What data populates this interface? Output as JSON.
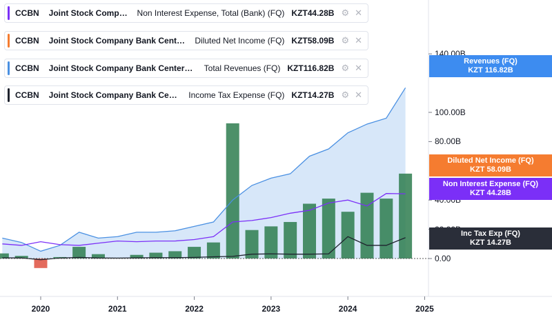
{
  "legend": [
    {
      "ticker": "CCBN",
      "company": "Joint Stock Company Bank CenterCredit",
      "metric": "Non Interest Expense, Total (Bank) (FQ)",
      "value": "KZT44.28B",
      "color": "#7b2ff7"
    },
    {
      "ticker": "CCBN",
      "company": "Joint Stock Company Bank CenterCredit",
      "metric": "Diluted Net Income (FQ)",
      "value": "KZT58.09B",
      "color": "#f57c30"
    },
    {
      "ticker": "CCBN",
      "company": "Joint Stock Company Bank CenterCredit",
      "metric": "Total Revenues (FQ)",
      "value": "KZT116.82B",
      "color": "#4a90e2"
    },
    {
      "ticker": "CCBN",
      "company": "Joint Stock Company Bank CenterCredit",
      "metric": "Income Tax Expense (FQ)",
      "value": "KZT14.27B",
      "color": "#1e222d"
    }
  ],
  "icons": {
    "settings": "gear-icon",
    "close": "close-icon"
  },
  "price_labels": [
    {
      "title": "Revenues (FQ)",
      "value": "KZT 116.82B",
      "color": "#3d8cf0"
    },
    {
      "title": "Diluted Net Income (FQ)",
      "value": "KZT 58.09B",
      "color": "#f57c30"
    },
    {
      "title": "Non Interest Expense (FQ)",
      "value": "KZT 44.28B",
      "color": "#7b2ff7"
    },
    {
      "title": "Inc Tax Exp (FQ)",
      "value": "KZT 14.27B",
      "color": "#2a2e39"
    }
  ],
  "chart_data": {
    "type": "bar",
    "title": "",
    "xlabel": "",
    "ylabel": "",
    "y_ticks": [
      "0.00",
      "20.00B",
      "40.00B",
      "80.00B",
      "100.00B",
      "140.00B"
    ],
    "y_tick_values": [
      0,
      20,
      40,
      80,
      100,
      140
    ],
    "x_ticks": [
      "2020",
      "2021",
      "2022",
      "2023",
      "2024",
      "2025"
    ],
    "x_tick_values": [
      2020,
      2021,
      2022,
      2023,
      2024,
      2025
    ],
    "ylim": [
      -8,
      158
    ],
    "xlim": [
      2019.47,
      2025.05
    ],
    "grid": false,
    "series": [
      {
        "name": "Diluted Net Income (FQ)",
        "type": "bar",
        "positive_color": "#2e7d4f",
        "negative_color": "#e05a4a",
        "x": [
          2019.5,
          2019.75,
          2020.0,
          2020.25,
          2020.5,
          2020.75,
          2021.0,
          2021.25,
          2021.5,
          2021.75,
          2022.0,
          2022.25,
          2022.5,
          2022.75,
          2023.0,
          2023.25,
          2023.5,
          2023.75,
          2024.0,
          2024.25,
          2024.5,
          2024.75
        ],
        "values": [
          3.5,
          1.8,
          -6.5,
          1.0,
          8.0,
          3.0,
          0.5,
          2.5,
          4.0,
          5.0,
          8.0,
          11.0,
          92.5,
          19.5,
          22.0,
          25.0,
          37.5,
          41.0,
          32.0,
          45.0,
          41.0,
          58.09
        ]
      },
      {
        "name": "Total Revenues (FQ)",
        "type": "area",
        "color": "#4a90e2",
        "x": [
          2019.5,
          2019.75,
          2020.0,
          2020.25,
          2020.5,
          2020.75,
          2021.0,
          2021.25,
          2021.5,
          2021.75,
          2022.0,
          2022.25,
          2022.5,
          2022.75,
          2023.0,
          2023.25,
          2023.5,
          2023.75,
          2024.0,
          2024.25,
          2024.5,
          2024.75
        ],
        "values": [
          14,
          11,
          5,
          9,
          18,
          14,
          15,
          18,
          18,
          19,
          22,
          25,
          40,
          50,
          55,
          58,
          70,
          75,
          86,
          92,
          96,
          116.82
        ]
      },
      {
        "name": "Non Interest Expense, Total (Bank) (FQ)",
        "type": "line",
        "color": "#7b2ff7",
        "x": [
          2019.5,
          2019.75,
          2020.0,
          2020.25,
          2020.5,
          2020.75,
          2021.0,
          2021.25,
          2021.5,
          2021.75,
          2022.0,
          2022.25,
          2022.5,
          2022.75,
          2023.0,
          2023.25,
          2023.5,
          2023.75,
          2024.0,
          2024.25,
          2024.5,
          2024.75
        ],
        "values": [
          10,
          9,
          11.5,
          9.5,
          9,
          10.5,
          12,
          11.5,
          12,
          12,
          13,
          15,
          25,
          26,
          28,
          31,
          33,
          38,
          40,
          36,
          44.5,
          44.28
        ]
      },
      {
        "name": "Income Tax Expense (FQ)",
        "type": "line",
        "color": "#1e222d",
        "x": [
          2019.5,
          2019.75,
          2020.0,
          2020.25,
          2020.5,
          2020.75,
          2021.0,
          2021.25,
          2021.5,
          2021.75,
          2022.0,
          2022.25,
          2022.5,
          2022.75,
          2023.0,
          2023.25,
          2023.5,
          2023.75,
          2024.0,
          2024.25,
          2024.5,
          2024.75
        ],
        "values": [
          0.5,
          0.4,
          -0.8,
          0.3,
          0.8,
          0.4,
          0.3,
          0.5,
          0.6,
          0.6,
          0.8,
          1.2,
          1.5,
          3.0,
          3.2,
          3.0,
          3.0,
          3.2,
          15,
          9,
          9,
          14.27
        ]
      }
    ]
  }
}
